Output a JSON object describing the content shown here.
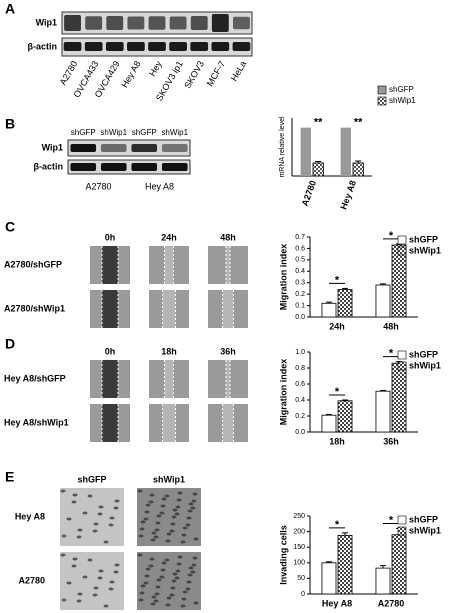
{
  "panels": {
    "a": "A",
    "b": "B",
    "c": "C",
    "d": "D",
    "e": "E"
  },
  "blot_a": {
    "rows": [
      "Wip1",
      "β-actin"
    ],
    "lanes": [
      "A2780",
      "OVCA433",
      "OVCA429",
      "Hey A8",
      "Hey",
      "SKOV3 ip1",
      "SKOV3",
      "MCF-7",
      "HeLa"
    ]
  },
  "blot_b": {
    "rows": [
      "Wip1",
      "β-actin"
    ],
    "lanes": [
      "shGFP",
      "shWip1",
      "shGFP",
      "shWip1"
    ],
    "groups": [
      "A2780",
      "Hey A8"
    ]
  },
  "scratch_c": {
    "times": [
      "0h",
      "24h",
      "48h"
    ],
    "rows": [
      "A2780/shGFP",
      "A2780/shWip1"
    ]
  },
  "scratch_d": {
    "times": [
      "0h",
      "18h",
      "36h"
    ],
    "rows": [
      "Hey A8/shGFP",
      "Hey A8/shWip1"
    ]
  },
  "invasion_e": {
    "columns": [
      "shGFP",
      "shWip1"
    ],
    "rows": [
      "Hey A8",
      "A2780"
    ]
  },
  "chart_data": [
    {
      "type": "bar",
      "ylabel": "mRNA relative level",
      "categories": [
        "A2780",
        "Hey A8"
      ],
      "series": [
        {
          "name": "shGFP",
          "color": "#999999",
          "values": [
            1,
            1
          ]
        },
        {
          "name": "shWip1",
          "color": "#555555",
          "values": [
            0.27,
            0.27
          ],
          "errors": [
            0.03,
            0.04
          ]
        }
      ],
      "significance": [
        "**",
        "**"
      ],
      "significance_bracket": false,
      "ylim": [
        0,
        1.2
      ]
    },
    {
      "type": "bar",
      "ylabel": "Migration index",
      "categories": [
        "24h",
        "48h"
      ],
      "series": [
        {
          "name": "shGFP",
          "color": "#ffffff",
          "values": [
            0.12,
            0.28
          ],
          "errors": [
            0.01,
            0.01
          ]
        },
        {
          "name": "shWip1",
          "color": "#444444",
          "values": [
            0.24,
            0.63
          ],
          "errors": [
            0.01,
            0.01
          ]
        }
      ],
      "significance": [
        "*",
        "*"
      ],
      "significance_bracket": true,
      "ylim": [
        0,
        0.7
      ],
      "yticks": [
        {
          "value": 0,
          "label": "0.0"
        },
        0.1,
        0.2,
        0.3,
        0.4,
        0.5,
        0.6,
        0.7
      ]
    },
    {
      "type": "bar",
      "ylabel": "Migration index",
      "categories": [
        "18h",
        "36h"
      ],
      "series": [
        {
          "name": "shGFP",
          "color": "#ffffff",
          "values": [
            0.21,
            0.51
          ],
          "errors": [
            0.01,
            0.01
          ]
        },
        {
          "name": "shWip1",
          "color": "#444444",
          "values": [
            0.39,
            0.86
          ],
          "errors": [
            0.01,
            0.02
          ]
        }
      ],
      "significance": [
        "*",
        "*"
      ],
      "significance_bracket": true,
      "ylim": [
        0,
        1
      ],
      "yticks": [
        {
          "value": 0,
          "label": "0.0"
        },
        0.2,
        0.4,
        0.6,
        0.8,
        {
          "value": 1,
          "label": "1.0"
        }
      ]
    },
    {
      "type": "bar",
      "ylabel": "Invading cells",
      "categories": [
        "Hey A8",
        "A2780"
      ],
      "series": [
        {
          "name": "shGFP",
          "color": "#ffffff",
          "values": [
            100,
            83
          ],
          "errors": [
            3,
            8
          ]
        },
        {
          "name": "shWip1",
          "color": "#444444",
          "values": [
            188,
            190
          ],
          "errors": [
            8,
            20
          ]
        }
      ],
      "significance": [
        "*",
        "*"
      ],
      "significance_bracket": true,
      "ylim": [
        0,
        250
      ],
      "yticks": [
        0,
        50,
        100,
        150,
        200,
        250
      ]
    }
  ]
}
